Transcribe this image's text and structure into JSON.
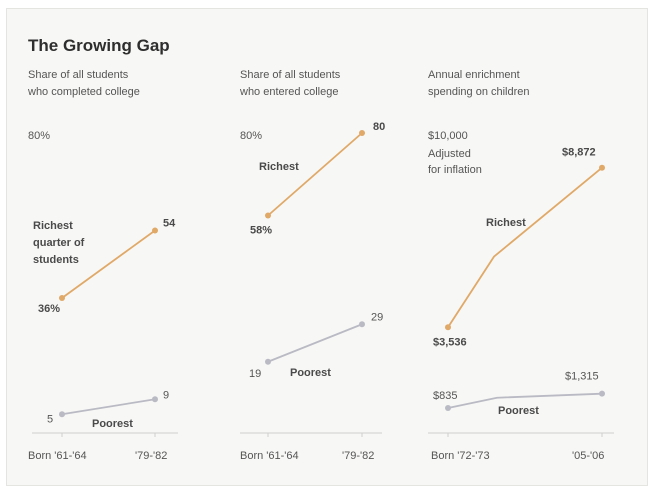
{
  "title": "The Growing Gap",
  "colors": {
    "richest": "#e0a968",
    "poorest": "#b9bac4",
    "axis": "#cfcfcf",
    "text": "#555555"
  },
  "chart_data": [
    {
      "type": "line",
      "subtitle": [
        "Share of all students",
        "who completed college"
      ],
      "categories": [
        "Born '61-'64",
        "'79-'82"
      ],
      "series": [
        {
          "name": "Richest quarter of students",
          "values": [
            36,
            54
          ],
          "value_labels": [
            "36%",
            "54"
          ]
        },
        {
          "name": "Poorest",
          "values": [
            5,
            9
          ],
          "value_labels": [
            "5",
            "9"
          ]
        }
      ],
      "top_label": "80%",
      "ylim": [
        0,
        80
      ]
    },
    {
      "type": "line",
      "subtitle": [
        "Share of all students",
        "who entered college"
      ],
      "categories": [
        "Born '61-'64",
        "'79-'82"
      ],
      "series": [
        {
          "name": "Richest",
          "values": [
            58,
            80
          ],
          "value_labels": [
            "58%",
            "80"
          ]
        },
        {
          "name": "Poorest",
          "values": [
            19,
            29
          ],
          "value_labels": [
            "19",
            "29"
          ]
        }
      ],
      "top_label": "80%",
      "ylim": [
        0,
        80
      ]
    },
    {
      "type": "line",
      "subtitle": [
        "Annual enrichment",
        "spending on children"
      ],
      "categories": [
        "Born '72-'73",
        "'05-'06"
      ],
      "series": [
        {
          "name": "Richest",
          "values": [
            3536,
            8872
          ],
          "value_labels": [
            "$3,536",
            "$8,872"
          ]
        },
        {
          "name": "Poorest",
          "values": [
            835,
            1315
          ],
          "value_labels": [
            "$835",
            "$1,315"
          ]
        }
      ],
      "top_label": "$10,000",
      "top_note": [
        "Adjusted",
        "for inflation"
      ],
      "ylim": [
        0,
        10000
      ]
    }
  ]
}
